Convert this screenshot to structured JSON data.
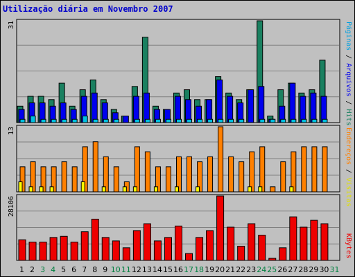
{
  "title": "Utilização diária em Novembro 2007",
  "colors": {
    "background": "#c0c0c0",
    "hits": "#1a8060",
    "files": "#0000ee",
    "pages": "#00c0e0",
    "visits": "#ffff00",
    "sites": "#ff8000",
    "kbytes": "#ee0000",
    "title": "#0000cc",
    "weekend_label": "#008040"
  },
  "legend_right": {
    "top_panel": [
      {
        "label": "Hits",
        "color": "#1a8060"
      },
      {
        "label": "Arquivos",
        "color": "#0000ee"
      },
      {
        "label": "Páginas",
        "color": "#00a0e0"
      }
    ],
    "mid_panel": [
      {
        "label": "Visitas",
        "color": "#e0e000"
      },
      {
        "label": "Endereços",
        "color": "#ff8000"
      }
    ],
    "bottom_panel": [
      {
        "label": "KBytes",
        "color": "#ee0000"
      }
    ]
  },
  "chart_data": {
    "type": "bar",
    "categories": [
      "1",
      "2",
      "3",
      "4",
      "5",
      "6",
      "7",
      "8",
      "9",
      "10",
      "11",
      "12",
      "13",
      "14",
      "15",
      "16",
      "17",
      "18",
      "19",
      "20",
      "21",
      "22",
      "23",
      "24",
      "25",
      "26",
      "27",
      "28",
      "29",
      "30",
      "31"
    ],
    "weekend_days": [
      "3",
      "4",
      "10",
      "11",
      "17",
      "18",
      "24",
      "25",
      "31"
    ],
    "panels": [
      {
        "name": "hits-files-pages",
        "ymax_label": "31",
        "ylim": [
          0,
          31
        ],
        "series": [
          {
            "name": "Hits",
            "values": [
              5,
              8,
              8,
              7,
              12,
              5,
              10,
              13,
              7,
              4,
              2,
              11,
              26,
              5,
              4,
              9,
              10,
              7,
              7,
              14,
              9,
              7,
              10,
              31,
              2,
              10,
              12,
              9,
              10,
              19,
              null
            ]
          },
          {
            "name": "Arquivos",
            "values": [
              4,
              6,
              6,
              5,
              6,
              4,
              8,
              9,
              6,
              3,
              2,
              8,
              9,
              4,
              4,
              8,
              7,
              5,
              7,
              13,
              8,
              6,
              10,
              11,
              1,
              5,
              12,
              8,
              9,
              8,
              null
            ]
          },
          {
            "name": "Páginas",
            "values": [
              1,
              2,
              1,
              1,
              1,
              1,
              2,
              1,
              1,
              1,
              0,
              1,
              1,
              1,
              1,
              1,
              1,
              1,
              1,
              1,
              1,
              1,
              0,
              1,
              1,
              1,
              1,
              1,
              1,
              1,
              null
            ]
          }
        ]
      },
      {
        "name": "visits-sites",
        "ymax_label": "13",
        "ylim": [
          0,
          13
        ],
        "series": [
          {
            "name": "Visitas",
            "values": [
              2,
              1,
              1,
              1,
              0,
              0,
              2,
              0,
              1,
              0,
              1,
              1,
              0,
              1,
              0,
              1,
              0,
              1,
              0,
              0,
              0,
              0,
              1,
              1,
              0,
              0,
              1,
              0,
              0,
              0,
              null
            ]
          },
          {
            "name": "Endereços",
            "values": [
              5,
              6,
              5,
              5,
              6,
              5,
              9,
              10,
              7,
              5,
              2,
              9,
              8,
              5,
              5,
              7,
              7,
              6,
              7,
              13,
              7,
              6,
              8,
              9,
              1,
              6,
              8,
              9,
              9,
              9,
              null
            ]
          }
        ]
      },
      {
        "name": "kbytes",
        "ymax_label": "28106",
        "ylim": [
          0,
          28106
        ],
        "series": [
          {
            "name": "KBytes",
            "values": [
              9000,
              8000,
              8000,
              10000,
              10500,
              8000,
              12500,
              18000,
              10000,
              8500,
              5500,
              13000,
              16000,
              8500,
              10000,
              15000,
              3000,
              10000,
              13000,
              28106,
              14500,
              6200,
              16000,
              11000,
              900,
              5500,
              19000,
              14500,
              17500,
              16000,
              null
            ]
          }
        ]
      }
    ]
  }
}
